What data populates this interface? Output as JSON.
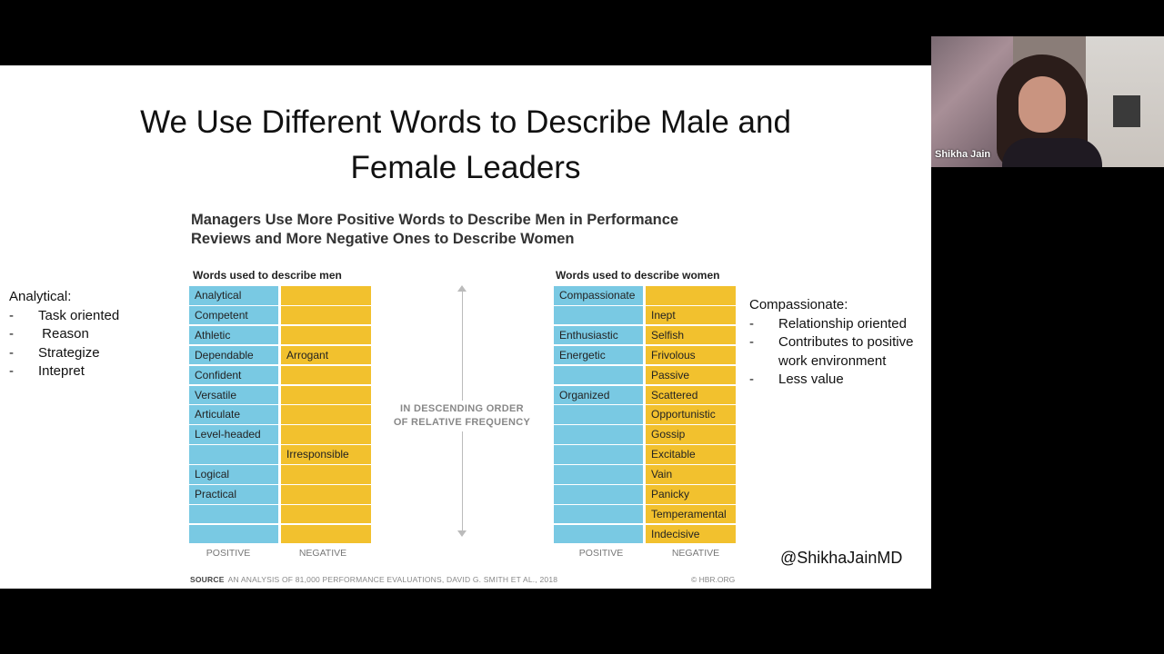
{
  "slide": {
    "title_line1": "We Use Different Words to Describe Male and",
    "title_line2": "Female Leaders",
    "chart_title_line1": "Managers Use More Positive Words to Describe Men in Performance",
    "chart_title_line2": "Reviews and More Negative Ones to Describe Women",
    "men_header": "Words used to describe men",
    "women_header": "Words used to describe women",
    "center_note_line1": "IN DESCENDING ORDER",
    "center_note_line2": "OF RELATIVE FREQUENCY",
    "positive_label": "POSITIVE",
    "negative_label": "NEGATIVE",
    "source_label": "SOURCE",
    "source_text": "AN ANALYSIS OF 81,000 PERFORMANCE EVALUATIONS, DAVID G. SMITH ET AL., 2018",
    "credit": "© HBR.ORG",
    "handle": "@ShikhaJainMD"
  },
  "men_rows": [
    {
      "positive": "Analytical",
      "negative": ""
    },
    {
      "positive": "Competent",
      "negative": ""
    },
    {
      "positive": "Athletic",
      "negative": ""
    },
    {
      "positive": "Dependable",
      "negative": "Arrogant"
    },
    {
      "positive": "Confident",
      "negative": ""
    },
    {
      "positive": "Versatile",
      "negative": ""
    },
    {
      "positive": "Articulate",
      "negative": ""
    },
    {
      "positive": "Level-headed",
      "negative": ""
    },
    {
      "positive": "",
      "negative": "Irresponsible"
    },
    {
      "positive": "Logical",
      "negative": ""
    },
    {
      "positive": "Practical",
      "negative": ""
    },
    {
      "positive": "",
      "negative": ""
    },
    {
      "positive": "",
      "negative": ""
    }
  ],
  "women_rows": [
    {
      "positive": "Compassionate",
      "negative": ""
    },
    {
      "positive": "",
      "negative": "Inept"
    },
    {
      "positive": "Enthusiastic",
      "negative": "Selfish"
    },
    {
      "positive": "Energetic",
      "negative": "Frivolous"
    },
    {
      "positive": "",
      "negative": "Passive"
    },
    {
      "positive": "Organized",
      "negative": "Scattered"
    },
    {
      "positive": "",
      "negative": "Opportunistic"
    },
    {
      "positive": "",
      "negative": "Gossip"
    },
    {
      "positive": "",
      "negative": "Excitable"
    },
    {
      "positive": "",
      "negative": "Vain"
    },
    {
      "positive": "",
      "negative": "Panicky"
    },
    {
      "positive": "",
      "negative": "Temperamental"
    },
    {
      "positive": "",
      "negative": "Indecisive"
    }
  ],
  "left_notes": {
    "heading": "Analytical:",
    "items": [
      "Task oriented",
      " Reason",
      "Strategize",
      "Intepret"
    ]
  },
  "right_notes": {
    "heading": "Compassionate:",
    "items": [
      "Relationship oriented",
      "Contributes to positive",
      "work environment",
      "Less value"
    ]
  },
  "dash": "-",
  "video": {
    "participant_name": "Shikha Jain"
  },
  "colors": {
    "positive": "#79c9e3",
    "negative": "#f2c12e"
  }
}
